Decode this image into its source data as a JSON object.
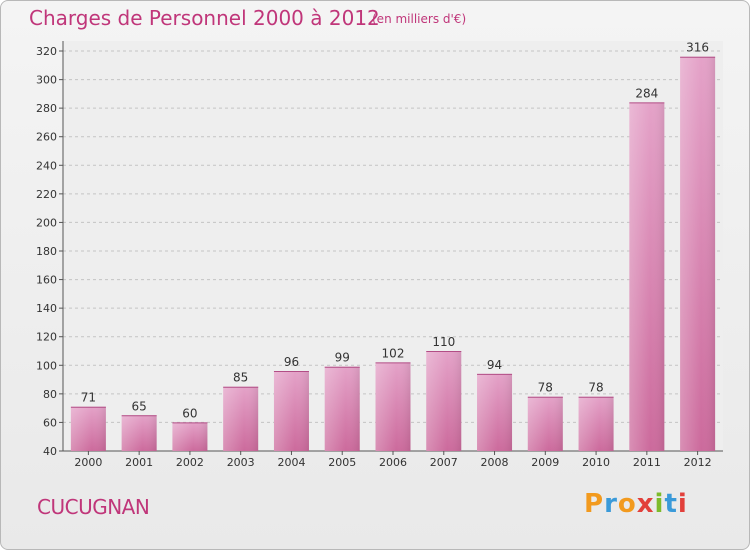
{
  "chart_data": {
    "type": "bar",
    "title": "Charges de Personnel 2000 à 2012",
    "subtitle": "(en milliers d'€)",
    "categories": [
      "2000",
      "2001",
      "2002",
      "2003",
      "2004",
      "2005",
      "2006",
      "2007",
      "2008",
      "2009",
      "2010",
      "2011",
      "2012"
    ],
    "values": [
      71,
      65,
      60,
      85,
      96,
      99,
      102,
      110,
      94,
      78,
      78,
      284,
      316
    ],
    "ylim": [
      40,
      320
    ],
    "yticks": [
      40,
      60,
      80,
      100,
      120,
      140,
      160,
      180,
      200,
      220,
      240,
      260,
      280,
      300,
      320
    ],
    "grid": true,
    "bar_color": "#cc6a9c",
    "title_color": "#c0367a"
  },
  "footer": {
    "commune": "CUCUGNAN",
    "logo": {
      "letters": [
        "P",
        "r",
        "o",
        "x",
        "i",
        "t",
        "i"
      ],
      "colors": [
        "#f29a1e",
        "#3a9ad9",
        "#f29a1e",
        "#e2403b",
        "#7dbb2b",
        "#3a9ad9",
        "#e2403b"
      ]
    }
  }
}
